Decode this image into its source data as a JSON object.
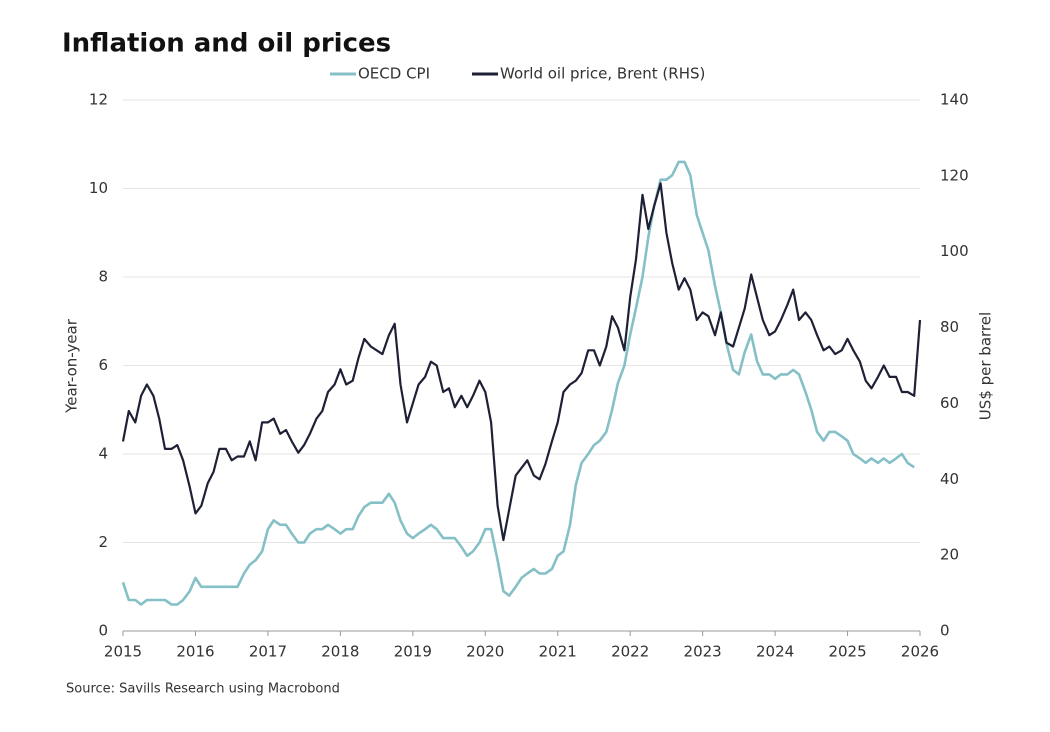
{
  "chart_data": {
    "type": "line",
    "title": "Inflation and oil prices",
    "ylabel": "Year-on-year",
    "y2label": "US$ per barrel",
    "source": "Source: Savills Research using Macrobond",
    "xlim": [
      2015,
      2026
    ],
    "xticks": [
      2015,
      2016,
      2017,
      2018,
      2019,
      2020,
      2021,
      2022,
      2023,
      2024,
      2025,
      2026
    ],
    "ylim": [
      0,
      12
    ],
    "yticks": [
      0,
      2,
      4,
      6,
      8,
      10,
      12
    ],
    "y2lim": [
      0,
      140
    ],
    "y2ticks": [
      0,
      20,
      40,
      60,
      80,
      100,
      120,
      140
    ],
    "grid": true,
    "legend": "top",
    "x": [
      2015,
      2015.08,
      2015.17,
      2015.25,
      2015.33,
      2015.42,
      2015.5,
      2015.58,
      2015.67,
      2015.75,
      2015.83,
      2015.92,
      2016,
      2016.08,
      2016.17,
      2016.25,
      2016.33,
      2016.42,
      2016.5,
      2016.58,
      2016.67,
      2016.75,
      2016.83,
      2016.92,
      2017,
      2017.08,
      2017.17,
      2017.25,
      2017.33,
      2017.42,
      2017.5,
      2017.58,
      2017.67,
      2017.75,
      2017.83,
      2017.92,
      2018,
      2018.08,
      2018.17,
      2018.25,
      2018.33,
      2018.42,
      2018.5,
      2018.58,
      2018.67,
      2018.75,
      2018.83,
      2018.92,
      2019,
      2019.08,
      2019.17,
      2019.25,
      2019.33,
      2019.42,
      2019.5,
      2019.58,
      2019.67,
      2019.75,
      2019.83,
      2019.92,
      2020,
      2020.08,
      2020.17,
      2020.25,
      2020.33,
      2020.42,
      2020.5,
      2020.58,
      2020.67,
      2020.75,
      2020.83,
      2020.92,
      2021,
      2021.08,
      2021.17,
      2021.25,
      2021.33,
      2021.42,
      2021.5,
      2021.58,
      2021.67,
      2021.75,
      2021.83,
      2021.92,
      2022,
      2022.08,
      2022.17,
      2022.25,
      2022.33,
      2022.42,
      2022.5,
      2022.58,
      2022.67,
      2022.75,
      2022.83,
      2022.92,
      2023,
      2023.08,
      2023.17,
      2023.25,
      2023.33,
      2023.42,
      2023.5,
      2023.58,
      2023.67,
      2023.75,
      2023.83,
      2023.92,
      2024,
      2024.08,
      2024.17,
      2024.25,
      2024.33,
      2024.42,
      2024.5,
      2024.58,
      2024.67,
      2024.75,
      2024.83,
      2024.92,
      2025,
      2025.08,
      2025.17,
      2025.25,
      2025.33,
      2025.42,
      2025.5,
      2025.58,
      2025.67,
      2025.75,
      2025.83,
      2025.92,
      2026
    ],
    "series": [
      {
        "name": "OECD CPI",
        "color": "#85c0c7",
        "axis": "y",
        "values": [
          1.1,
          0.7,
          0.7,
          0.6,
          0.7,
          0.7,
          0.7,
          0.7,
          0.6,
          0.6,
          0.7,
          0.9,
          1.2,
          1.0,
          1.0,
          1.0,
          1.0,
          1.0,
          1.0,
          1.0,
          1.3,
          1.5,
          1.6,
          1.8,
          2.3,
          2.5,
          2.4,
          2.4,
          2.2,
          2.0,
          2.0,
          2.2,
          2.3,
          2.3,
          2.4,
          2.3,
          2.2,
          2.3,
          2.3,
          2.6,
          2.8,
          2.9,
          2.9,
          2.9,
          3.1,
          2.9,
          2.5,
          2.2,
          2.1,
          2.2,
          2.3,
          2.4,
          2.3,
          2.1,
          2.1,
          2.1,
          1.9,
          1.7,
          1.8,
          2.0,
          2.3,
          2.3,
          1.6,
          0.9,
          0.8,
          1.0,
          1.2,
          1.3,
          1.4,
          1.3,
          1.3,
          1.4,
          1.7,
          1.8,
          2.4,
          3.3,
          3.8,
          4.0,
          4.2,
          4.3,
          4.5,
          5.0,
          5.6,
          6.0,
          6.7,
          7.3,
          8.0,
          8.9,
          9.6,
          10.2,
          10.2,
          10.3,
          10.6,
          10.6,
          10.3,
          9.4,
          9.0,
          8.6,
          7.8,
          7.2,
          6.5,
          5.9,
          5.8,
          6.3,
          6.7,
          6.1,
          5.8,
          5.8,
          5.7,
          5.8,
          5.8,
          5.9,
          5.8,
          5.4,
          5.0,
          4.5,
          4.3,
          4.5,
          4.5,
          4.4,
          4.3,
          4.0,
          3.9,
          3.8,
          3.9,
          3.8,
          3.9,
          3.8,
          3.9,
          4.0,
          3.8,
          3.7,
          null
        ]
      },
      {
        "name": "World oil price, Brent (RHS)",
        "color": "#1e2036",
        "axis": "y2",
        "values": [
          50,
          58,
          55,
          62,
          65,
          62,
          56,
          48,
          48,
          49,
          45,
          38,
          31,
          33,
          39,
          42,
          48,
          48,
          45,
          46,
          46,
          50,
          45,
          55,
          55,
          56,
          52,
          53,
          50,
          47,
          49,
          52,
          56,
          58,
          63,
          65,
          69,
          65,
          66,
          72,
          77,
          75,
          74,
          73,
          78,
          81,
          65,
          55,
          60,
          65,
          67,
          71,
          70,
          63,
          64,
          59,
          62,
          59,
          62,
          66,
          63,
          55,
          33,
          24,
          32,
          41,
          43,
          45,
          41,
          40,
          44,
          50,
          55,
          63,
          65,
          66,
          68,
          74,
          74,
          70,
          75,
          83,
          80,
          74,
          88,
          98,
          115,
          106,
          112,
          118,
          105,
          97,
          90,
          93,
          90,
          82,
          84,
          83,
          78,
          84,
          76,
          75,
          80,
          85,
          94,
          88,
          82,
          78,
          79,
          82,
          86,
          90,
          82,
          84,
          82,
          78,
          74,
          75,
          73,
          74,
          77,
          74,
          71,
          66,
          64,
          67,
          70,
          67,
          67,
          63,
          63,
          62,
          82
        ]
      }
    ]
  }
}
